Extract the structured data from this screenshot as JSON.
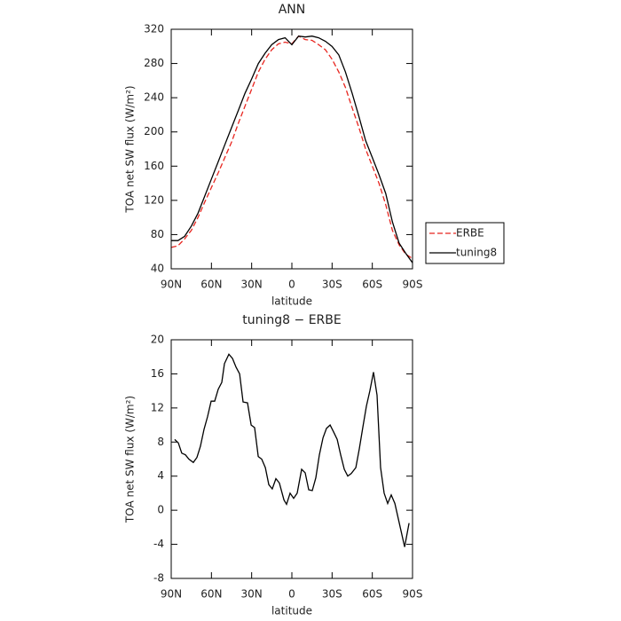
{
  "chart_data": [
    {
      "type": "line",
      "title": "ANN",
      "xlabel": "latitude",
      "ylabel": "TOA net SW flux (W/m²)",
      "x": [
        90,
        85,
        80,
        75,
        70,
        65,
        60,
        55,
        50,
        45,
        40,
        35,
        30,
        25,
        20,
        15,
        10,
        5,
        0,
        -5,
        -10,
        -15,
        -20,
        -25,
        -30,
        -35,
        -40,
        -45,
        -50,
        -55,
        -60,
        -65,
        -70,
        -75,
        -80,
        -85,
        -90
      ],
      "series": [
        {
          "name": "ERBE",
          "color": "#e8251f",
          "dash": true,
          "values": [
            65,
            67,
            75,
            85,
            100,
            118,
            135,
            152,
            170,
            188,
            210,
            230,
            250,
            270,
            285,
            296,
            303,
            305,
            303,
            312,
            308,
            307,
            302,
            296,
            285,
            270,
            252,
            228,
            205,
            180,
            160,
            140,
            115,
            85,
            68,
            57,
            52
          ]
        },
        {
          "name": "tuning8",
          "color": "#000000",
          "dash": false,
          "values": [
            73,
            73,
            78,
            90,
            105,
            125,
            145,
            165,
            185,
            205,
            225,
            245,
            262,
            280,
            292,
            302,
            308,
            310,
            302,
            312,
            311,
            312,
            310,
            306,
            300,
            290,
            270,
            245,
            218,
            190,
            170,
            150,
            128,
            95,
            70,
            58,
            47
          ]
        }
      ],
      "xlim": [
        90,
        -90
      ],
      "xticks": [
        {
          "value": 90,
          "label": "90N"
        },
        {
          "value": 60,
          "label": "60N"
        },
        {
          "value": 30,
          "label": "30N"
        },
        0,
        {
          "value": -30,
          "label": "30S"
        },
        {
          "value": -60,
          "label": "60S"
        },
        {
          "value": -90,
          "label": "90S"
        }
      ],
      "ylim": [
        40,
        320
      ],
      "yticks": [
        40,
        80,
        120,
        160,
        200,
        240,
        280,
        320
      ],
      "legend": "right"
    },
    {
      "type": "line",
      "title": "tuning8 − ERBE",
      "xlabel": "latitude",
      "ylabel": "TOA net SW flux (W/m²)",
      "x": [
        87.4,
        84.7,
        82.1,
        79.4,
        76.8,
        73.5,
        70.8,
        68.2,
        65.5,
        62.9,
        60.2,
        57.6,
        54.9,
        52.3,
        50.3,
        47.0,
        44.3,
        41.7,
        39.0,
        36.4,
        33.1,
        30.4,
        27.8,
        25.1,
        22.5,
        19.8,
        17.2,
        14.6,
        11.9,
        9.3,
        5.9,
        4.0,
        1.3,
        -1.3,
        -4.0,
        -7.3,
        -9.9,
        -12.6,
        -15.2,
        -17.9,
        -20.5,
        -23.2,
        -25.8,
        -28.5,
        -31.1,
        -33.8,
        -36.4,
        -39.1,
        -41.7,
        -44.3,
        -47.7,
        -50.3,
        -53.0,
        -55.6,
        -58.2,
        -60.9,
        -63.5,
        -66.2,
        -68.8,
        -71.5,
        -74.1,
        -76.8,
        -79.4,
        -84.1,
        -87.4
      ],
      "series": [
        {
          "name": "tuning8 − ERBE",
          "color": "#000000",
          "dash": false,
          "values": [
            8.3,
            7.9,
            6.7,
            6.5,
            6,
            5.6,
            6.2,
            7.5,
            9.5,
            11,
            12.8,
            12.8,
            14.2,
            15,
            17.2,
            18.3,
            17.8,
            16.8,
            16,
            12.7,
            12.6,
            10,
            9.7,
            6.3,
            6,
            5,
            3,
            2.5,
            3.7,
            3.2,
            1.2,
            0.7,
            2,
            1.4,
            2,
            4.8,
            4.4,
            2.4,
            2.3,
            3.8,
            6.5,
            8.5,
            9.6,
            10,
            9.2,
            8.3,
            6.5,
            4.8,
            4,
            4.3,
            5,
            7.2,
            9.8,
            12.2,
            14,
            16.2,
            13.5,
            5,
            2,
            0.8,
            1.8,
            0.8,
            -1,
            -4.3,
            -1.5
          ]
        }
      ],
      "xlim": [
        90,
        -90
      ],
      "xticks": [
        {
          "value": 90,
          "label": "90N"
        },
        {
          "value": 60,
          "label": "60N"
        },
        {
          "value": 30,
          "label": "30N"
        },
        0,
        {
          "value": -30,
          "label": "30S"
        },
        {
          "value": -60,
          "label": "60S"
        },
        {
          "value": -90,
          "label": "90S"
        }
      ],
      "ylim": [
        -8,
        20
      ],
      "yticks": [
        -8,
        -4,
        0,
        4,
        8,
        12,
        16,
        20
      ]
    }
  ]
}
